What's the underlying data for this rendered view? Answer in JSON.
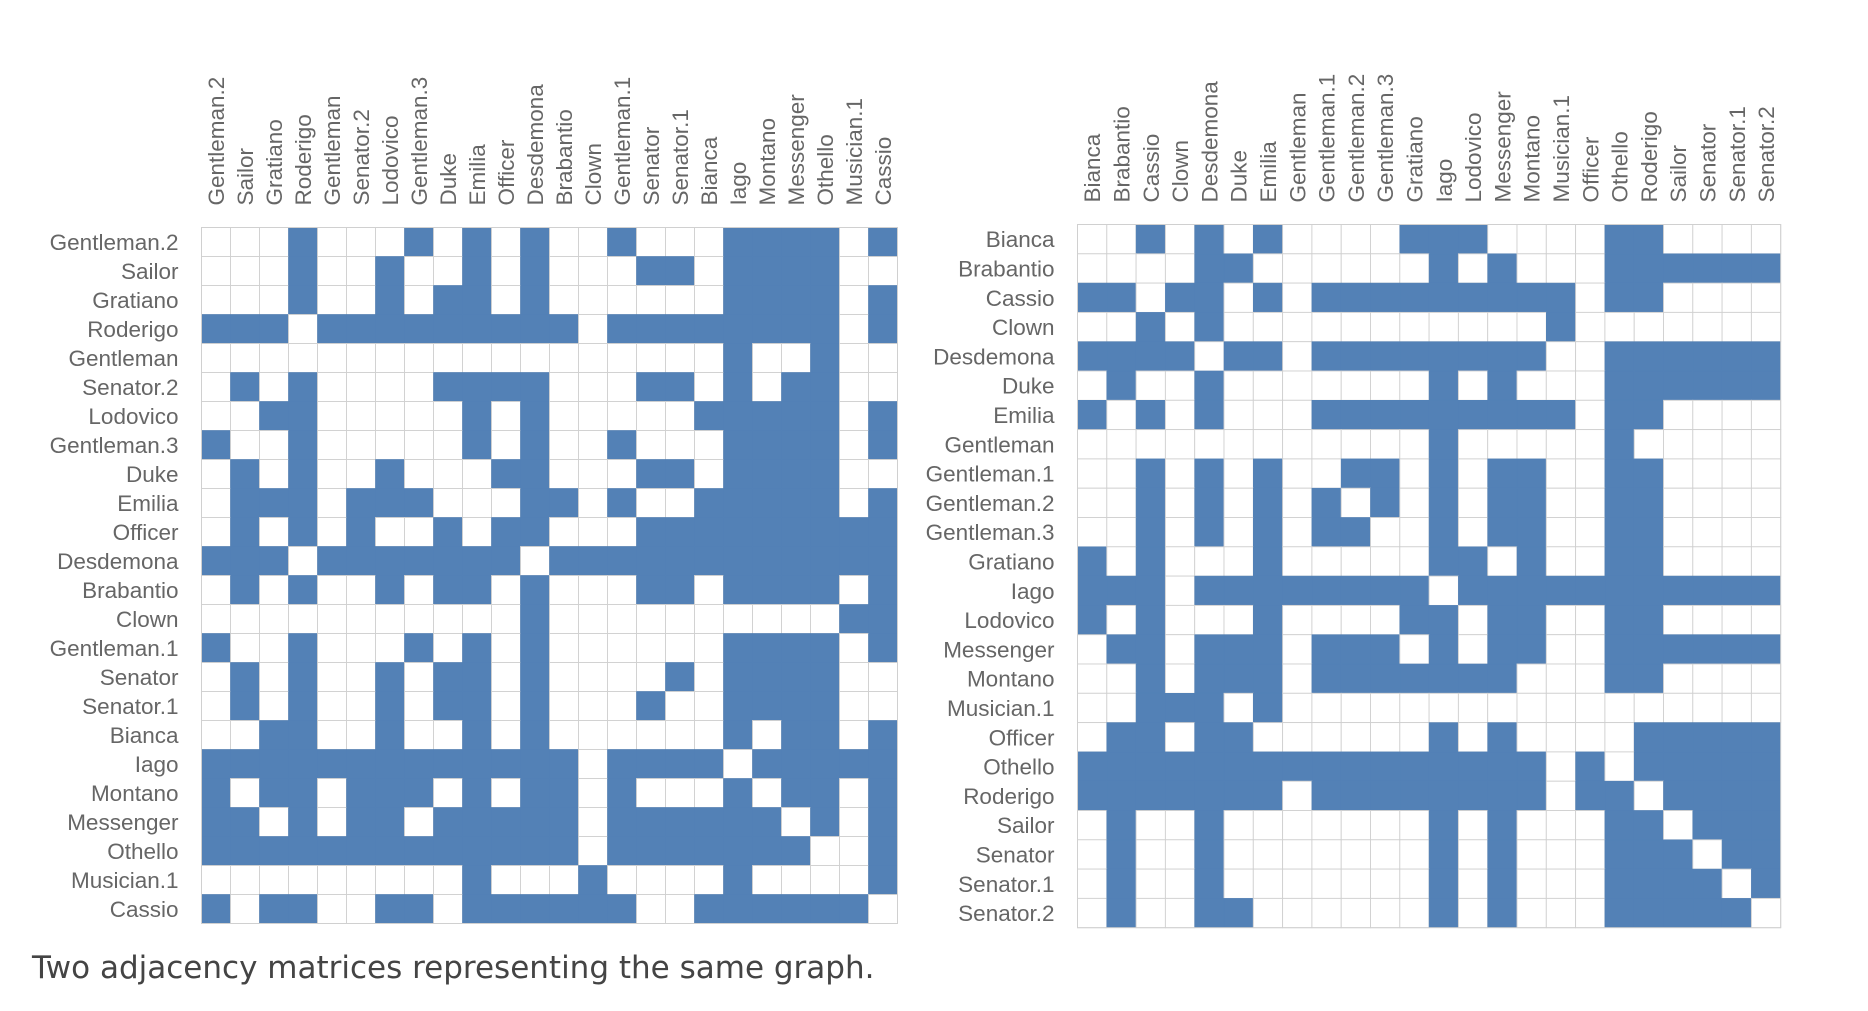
{
  "caption": "Two adjacency matrices representing the same graph.",
  "colors": {
    "filled": "#5381b6",
    "empty": "#ffffff",
    "grid": "#d0d0d0",
    "label": "#666666"
  },
  "chart_data": [
    {
      "type": "heatmap",
      "title": "",
      "labels": [
        "Gentleman.2",
        "Sailor",
        "Gratiano",
        "Roderigo",
        "Gentleman",
        "Senator.2",
        "Lodovico",
        "Gentleman.3",
        "Duke",
        "Emilia",
        "Officer",
        "Desdemona",
        "Brabantio",
        "Clown",
        "Gentleman.1",
        "Senator",
        "Senator.1",
        "Bianca",
        "Iago",
        "Montano",
        "Messenger",
        "Othello",
        "Musician.1",
        "Cassio"
      ],
      "matrix": [
        "000100010101001000111101",
        "000100100101000110111100",
        "000100101101000000111101",
        "111011111111101111111101",
        "000000000000000000100100",
        "010100001111000110101100",
        "001100000101000001111101",
        "100100000101001000111101",
        "010100100011000110111100",
        "011101110001101001111101",
        "010101001011000111111111",
        "111011111110111111111111",
        "010100101101000110111101",
        "000000000001000000000011",
        "100100010101000000111101",
        "010100101101000010111100",
        "010100101101000100111100",
        "001100100101000000101101",
        "111111111111101111011111",
        "101101110101101000101101",
        "110101101111101111110101",
        "111111111111101111111001",
        "000000000100010000100001",
        "101100110111111001111110"
      ]
    },
    {
      "type": "heatmap",
      "title": "",
      "labels": [
        "Bianca",
        "Brabantio",
        "Cassio",
        "Clown",
        "Desdemona",
        "Duke",
        "Emilia",
        "Gentleman",
        "Gentleman.1",
        "Gentleman.2",
        "Gentleman.3",
        "Gratiano",
        "Iago",
        "Lodovico",
        "Messenger",
        "Montano",
        "Musician.1",
        "Officer",
        "Othello",
        "Roderigo",
        "Sailor",
        "Senator",
        "Senator.1",
        "Senator.2"
      ],
      "matrix": [
        "001010100001110000110000",
        "000011000000101000111111",
        "110110101111111110110000",
        "001010000000000010000000",
        "111101101111111100111111",
        "010010000000101000111111",
        "101010001111111110110000",
        "000000000000100000100000",
        "001010100110101100110000",
        "001010101010101100110000",
        "001010101100101100110000",
        "101000100000110100110000",
        "111011111111011111111111",
        "101000100001101100110000",
        "011011101110101100111111",
        "001011101111111000110000",
        "001110100000000000000000",
        "011011000000101000011111",
        "111111111111111101011111",
        "111111101111111101101111",
        "010010000000101000110111",
        "010010000000101000111011",
        "010010000000101000111101",
        "010011000000101000111110"
      ]
    }
  ]
}
